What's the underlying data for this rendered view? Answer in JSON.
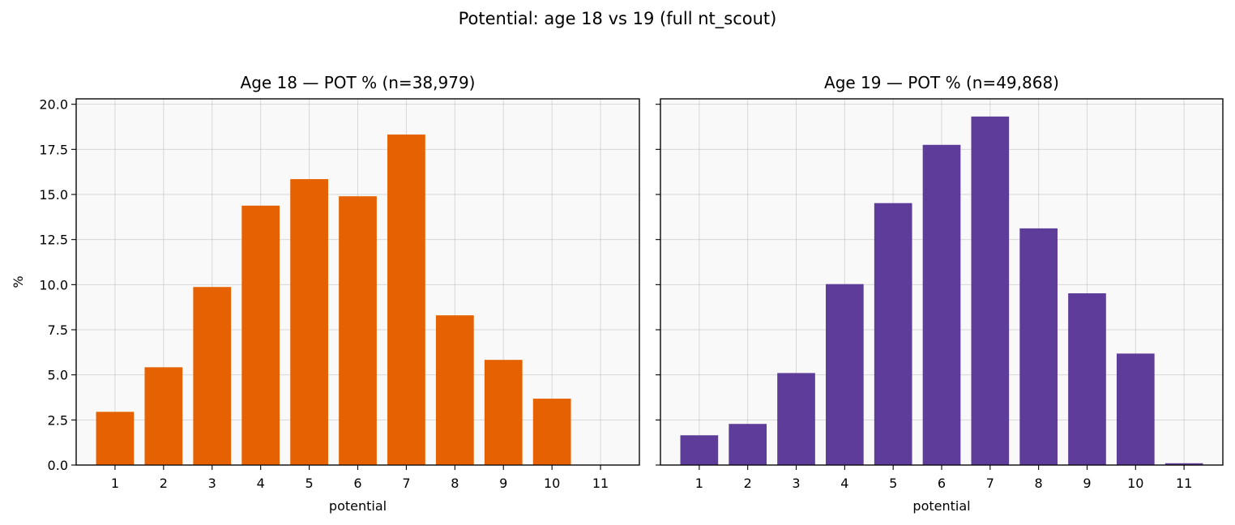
{
  "suptitle": "Potential: age 18 vs 19 (full nt_scout)",
  "chart_data": [
    {
      "type": "bar",
      "title": "Age 18 — POT % (n=38,979)",
      "xlabel": "potential",
      "ylabel": "%",
      "categories": [
        "1",
        "2",
        "3",
        "4",
        "5",
        "6",
        "7",
        "8",
        "9",
        "10",
        "11"
      ],
      "values": [
        2.95,
        5.42,
        9.87,
        14.38,
        15.85,
        14.9,
        18.32,
        8.3,
        5.83,
        3.68,
        0
      ],
      "color": "#e66101",
      "ylim": [
        0,
        20.3
      ],
      "yticks": [
        "0.0",
        "2.5",
        "5.0",
        "7.5",
        "10.0",
        "12.5",
        "15.0",
        "17.5",
        "20.0"
      ],
      "grid": true
    },
    {
      "type": "bar",
      "title": "Age 19 — POT % (n=49,868)",
      "xlabel": "potential",
      "ylabel": "",
      "categories": [
        "1",
        "2",
        "3",
        "4",
        "5",
        "6",
        "7",
        "8",
        "9",
        "10",
        "11"
      ],
      "values": [
        1.65,
        2.28,
        5.1,
        10.03,
        14.52,
        17.75,
        19.32,
        13.12,
        9.52,
        6.18,
        0.1
      ],
      "color": "#5e3c99",
      "ylim": [
        0,
        20.3
      ],
      "yticks": [
        "0.0",
        "2.5",
        "5.0",
        "7.5",
        "10.0",
        "12.5",
        "15.0",
        "17.5",
        "20.0"
      ],
      "grid": true
    }
  ]
}
